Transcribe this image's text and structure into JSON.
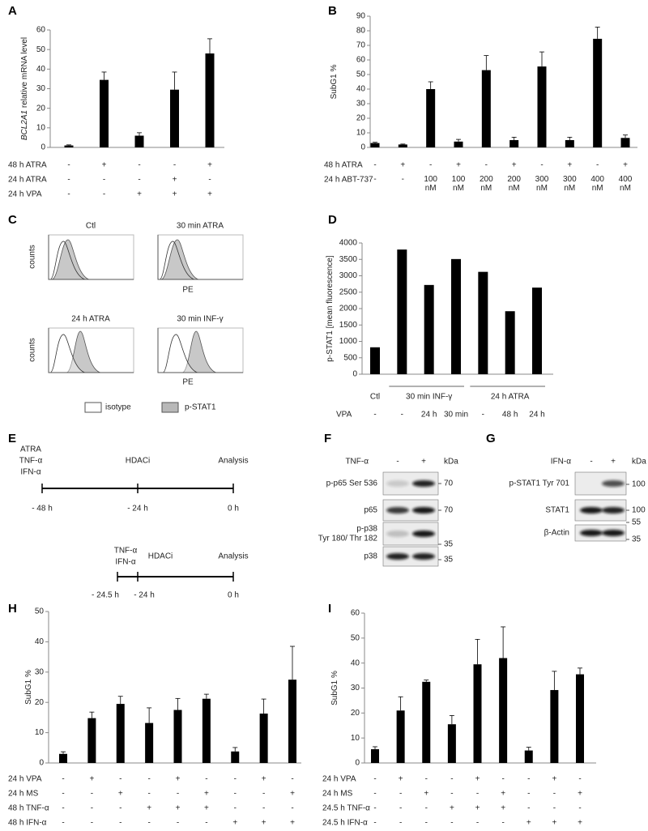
{
  "panel_labels": [
    "A",
    "B",
    "C",
    "D",
    "E",
    "F",
    "G",
    "H",
    "I"
  ],
  "chart_data": [
    {
      "type": "bar",
      "ylabel_italic": "BCL2A1",
      "ylabel": "relative mRNA level",
      "color": "#000000",
      "values": [
        1,
        34.5,
        6,
        29.5,
        48
      ],
      "errors": [
        0.3,
        4,
        1.5,
        9,
        7.5
      ],
      "ylim": [
        0,
        60
      ],
      "yticks": [
        0,
        10,
        20,
        30,
        40,
        50,
        60
      ],
      "conditions": [
        {
          "label": "48 h ATRA",
          "values": [
            "-",
            "+",
            "-",
            "-",
            "+"
          ]
        },
        {
          "label": "24 h ATRA",
          "values": [
            "-",
            "-",
            "-",
            "+",
            "-"
          ]
        },
        {
          "label": "24 h VPA",
          "values": [
            "-",
            "-",
            "+",
            "+",
            "+"
          ]
        }
      ]
    },
    {
      "type": "bar",
      "ylabel": "SubG1 %",
      "color": "#000000",
      "values": [
        3,
        2,
        40,
        4,
        53,
        5,
        55.5,
        5,
        74.5,
        6.5
      ],
      "errors": [
        0.5,
        0.3,
        5,
        1.5,
        10,
        2,
        10,
        2,
        8,
        2
      ],
      "ylim": [
        0,
        90
      ],
      "yticks": [
        0,
        10,
        20,
        30,
        40,
        50,
        60,
        70,
        80,
        90
      ],
      "conditions": [
        {
          "label": "48 h ATRA",
          "values": [
            "-",
            "+",
            "-",
            "+",
            "-",
            "+",
            "-",
            "+",
            "-",
            "+"
          ]
        },
        {
          "label": "24 h ABT-737",
          "values": [
            "-",
            "-",
            "100 nM",
            "100 nM",
            "200 nM",
            "200 nM",
            "300 nM",
            "300 nM",
            "400 nM",
            "400 nM"
          ]
        }
      ]
    },
    {
      "type": "bar",
      "ylabel": "p-STAT1 [mean fluorescence]",
      "color": "#000000",
      "values": [
        820,
        3800,
        2720,
        3510,
        3120,
        1920,
        2640
      ],
      "ylim": [
        0,
        4000
      ],
      "yticks": [
        0,
        500,
        1000,
        1500,
        2000,
        2500,
        3000,
        3500,
        4000
      ],
      "groups": [
        "Ctl",
        "30 min INF-γ",
        "24 h ATRA"
      ],
      "conditions": [
        {
          "label": "VPA",
          "values": [
            "-",
            "-",
            "24 h",
            "30 min",
            "-",
            "48 h",
            "24 h"
          ]
        }
      ]
    },
    {
      "type": "bar",
      "ylabel": "SubG1 %",
      "color": "#000000",
      "values": [
        3,
        14.8,
        19.5,
        13.2,
        17.5,
        21.2,
        3.8,
        16.3,
        27.5
      ],
      "errors": [
        0.7,
        2,
        2.5,
        5,
        3.8,
        1.5,
        1.3,
        4.8,
        11
      ],
      "ylim": [
        0,
        50
      ],
      "yticks": [
        0,
        10,
        20,
        30,
        40,
        50
      ],
      "conditions": [
        {
          "label": "24 h VPA",
          "values": [
            "-",
            "+",
            "-",
            "-",
            "+",
            "-",
            "-",
            "+",
            "-"
          ]
        },
        {
          "label": "24 h MS",
          "values": [
            "-",
            "-",
            "+",
            "-",
            "-",
            "+",
            "-",
            "-",
            "+"
          ]
        },
        {
          "label": "48 h TNF-α",
          "values": [
            "-",
            "-",
            "-",
            "+",
            "+",
            "+",
            "-",
            "-",
            "-"
          ]
        },
        {
          "label": "48 h IFN-α",
          "values": [
            "-",
            "-",
            "-",
            "-",
            "-",
            "-",
            "+",
            "+",
            "+"
          ]
        }
      ]
    },
    {
      "type": "bar",
      "ylabel": "SubG1 %",
      "color": "#000000",
      "values": [
        5.5,
        21,
        32.5,
        15.5,
        39.5,
        42,
        5,
        29.2,
        35.5
      ],
      "errors": [
        1,
        5.5,
        0.7,
        3.5,
        10,
        12.5,
        1.3,
        7.5,
        2.5
      ],
      "ylim": [
        0,
        60
      ],
      "yticks": [
        0,
        10,
        20,
        30,
        40,
        50,
        60
      ],
      "conditions": [
        {
          "label": "24 h VPA",
          "values": [
            "-",
            "+",
            "-",
            "-",
            "+",
            "-",
            "-",
            "+",
            "-"
          ]
        },
        {
          "label": "24 h MS",
          "values": [
            "-",
            "-",
            "+",
            "-",
            "-",
            "+",
            "-",
            "-",
            "+"
          ]
        },
        {
          "label": "24.5 h TNF-α",
          "values": [
            "-",
            "-",
            "-",
            "+",
            "+",
            "+",
            "-",
            "-",
            "-"
          ]
        },
        {
          "label": "24.5 h IFN-α",
          "values": [
            "-",
            "-",
            "-",
            "-",
            "-",
            "-",
            "+",
            "+",
            "+"
          ]
        }
      ]
    }
  ],
  "flow": {
    "titles": [
      "Ctl",
      "30 min ATRA",
      "24 h ATRA",
      "30 min INF-γ"
    ],
    "ylabel": "counts",
    "xlabel": "PE",
    "legend": [
      "isotype",
      "p-STAT1"
    ]
  },
  "timeline": {
    "top": {
      "start_labels": [
        "ATRA",
        "TNF-α",
        "IFN-α"
      ],
      "mid_label": "HDACi",
      "end_label": "Analysis",
      "ticks": [
        "- 48 h",
        "- 24 h",
        "0 h"
      ]
    },
    "bottom": {
      "start_labels": [
        "TNF-α",
        "IFN-α"
      ],
      "mid_label": "HDACi",
      "end_label": "Analysis",
      "ticks": [
        "- 24.5 h",
        "- 24 h",
        "0 h"
      ]
    }
  },
  "blots": [
    {
      "treatment": "TNF-α",
      "lanes": [
        "-",
        "+"
      ],
      "unit": "kDa",
      "rows": [
        {
          "label": [
            "p-p65 Ser 536"
          ],
          "markers": [
            70
          ]
        },
        {
          "label": [
            "p65"
          ],
          "markers": [
            70
          ]
        },
        {
          "label": [
            "p-p38",
            "Tyr 180/ Thr 182"
          ],
          "markers": [
            35
          ]
        },
        {
          "label": [
            "p38"
          ],
          "markers": [
            35
          ]
        }
      ]
    },
    {
      "treatment": "IFN-α",
      "lanes": [
        "-",
        "+"
      ],
      "unit": "kDa",
      "rows": [
        {
          "label": [
            "p-STAT1 Tyr 701"
          ],
          "markers": [
            100
          ]
        },
        {
          "label": [
            "STAT1"
          ],
          "markers": [
            100
          ]
        },
        {
          "label": [
            "β-Actin"
          ],
          "markers": [
            55,
            35
          ]
        }
      ]
    }
  ]
}
